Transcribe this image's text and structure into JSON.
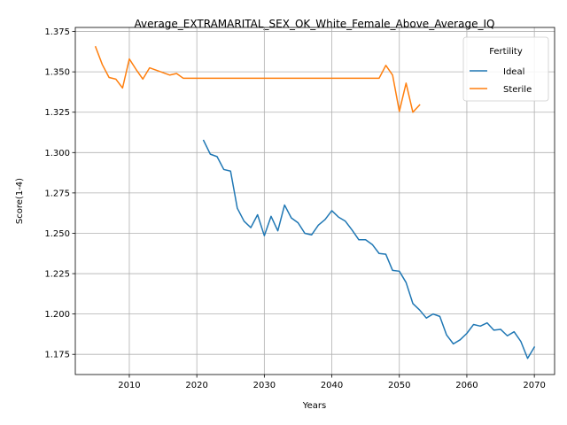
{
  "chart_data": {
    "type": "line",
    "title": "Average_EXTRAMARITAL_SEX_OK_White_Female_Above_Average_IQ",
    "xlabel": "Years",
    "ylabel": "Score(1-4)",
    "xlim": [
      2002,
      2073
    ],
    "ylim": [
      1.1625,
      1.3775
    ],
    "xticks": [
      2010,
      2020,
      2030,
      2040,
      2050,
      2060,
      2070
    ],
    "yticks": [
      1.175,
      1.2,
      1.225,
      1.25,
      1.275,
      1.3,
      1.325,
      1.35,
      1.375
    ],
    "xtick_labels": [
      "2010",
      "2020",
      "2030",
      "2040",
      "2050",
      "2060",
      "2070"
    ],
    "ytick_labels": [
      "1.175",
      "1.200",
      "1.225",
      "1.250",
      "1.275",
      "1.300",
      "1.325",
      "1.350",
      "1.375"
    ],
    "grid": true,
    "legend": {
      "title": "Fertility",
      "position": "upper-right"
    },
    "series": [
      {
        "name": "Ideal",
        "color": "#1f77b4",
        "x": [
          2021,
          2022,
          2023,
          2024,
          2025,
          2026,
          2027,
          2028,
          2029,
          2030,
          2031,
          2032,
          2033,
          2034,
          2035,
          2036,
          2037,
          2038,
          2039,
          2040,
          2041,
          2042,
          2043,
          2044,
          2045,
          2046,
          2047,
          2048,
          2049,
          2050,
          2051,
          2052,
          2053,
          2054,
          2055,
          2056,
          2057,
          2058,
          2059,
          2060,
          2061,
          2062,
          2063,
          2064,
          2065,
          2066,
          2067,
          2068,
          2069,
          2070
        ],
        "y": [
          1.3075,
          1.299,
          1.2975,
          1.2895,
          1.2885,
          1.2655,
          1.2575,
          1.2535,
          1.2615,
          1.2485,
          1.2605,
          1.2515,
          1.2675,
          1.2595,
          1.2565,
          1.25,
          1.249,
          1.255,
          1.2585,
          1.264,
          1.26,
          1.2575,
          1.252,
          1.246,
          1.246,
          1.243,
          1.2375,
          1.237,
          1.227,
          1.2265,
          1.2195,
          1.2065,
          1.2025,
          1.1975,
          1.2,
          1.1985,
          1.187,
          1.1815,
          1.184,
          1.188,
          1.1935,
          1.1925,
          1.1945,
          1.19,
          1.1905,
          1.1865,
          1.189,
          1.183,
          1.1725,
          1.1795
        ]
      },
      {
        "name": "Sterile",
        "color": "#ff7f0e",
        "x": [
          2005,
          2006,
          2007,
          2008,
          2009,
          2010,
          2011,
          2012,
          2013,
          2014,
          2015,
          2016,
          2017,
          2018,
          2019,
          2020,
          2021,
          2022,
          2023,
          2024,
          2025,
          2026,
          2027,
          2028,
          2029,
          2030,
          2031,
          2032,
          2033,
          2034,
          2035,
          2036,
          2037,
          2038,
          2039,
          2040,
          2041,
          2042,
          2043,
          2044,
          2045,
          2046,
          2047,
          2048,
          2049,
          2050,
          2051,
          2052,
          2053
        ],
        "y": [
          1.3655,
          1.3545,
          1.3465,
          1.3455,
          1.34,
          1.358,
          1.3515,
          1.3455,
          1.3525,
          1.351,
          1.3495,
          1.348,
          1.349,
          1.346,
          1.346,
          1.346,
          1.346,
          1.346,
          1.346,
          1.346,
          1.346,
          1.346,
          1.346,
          1.346,
          1.346,
          1.346,
          1.346,
          1.346,
          1.346,
          1.346,
          1.346,
          1.346,
          1.346,
          1.346,
          1.346,
          1.346,
          1.346,
          1.346,
          1.346,
          1.346,
          1.346,
          1.346,
          1.346,
          1.354,
          1.348,
          1.3255,
          1.343,
          1.325,
          1.3295
        ]
      }
    ]
  }
}
